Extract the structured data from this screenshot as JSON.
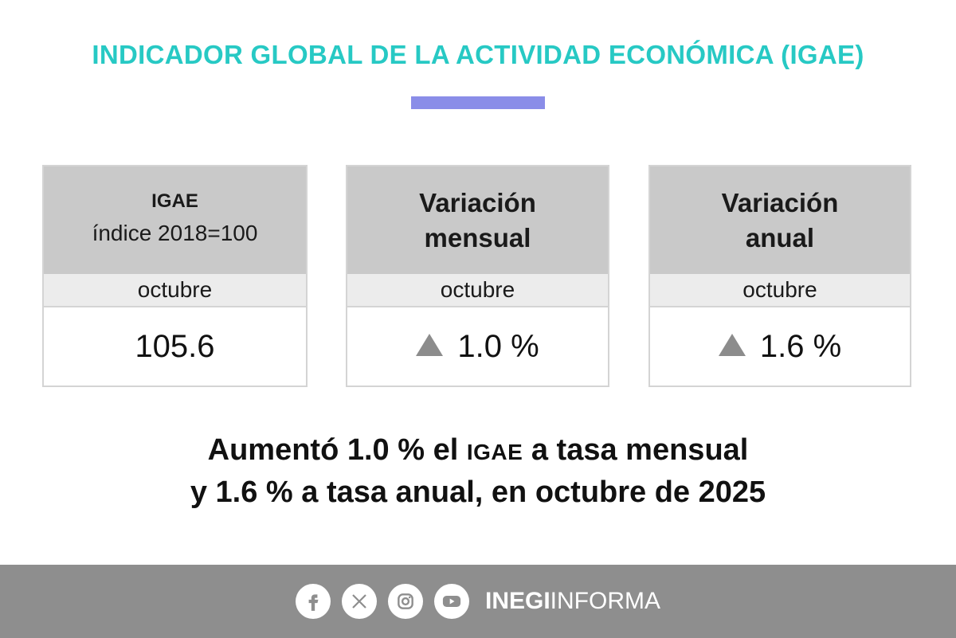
{
  "header": {
    "title": "INDICADOR GLOBAL DE LA ACTIVIDAD ECONÓMICA (IGAE)"
  },
  "colors": {
    "title": "#27c9c4",
    "accent_bar": "#8a8de8",
    "card_header": "#c9c9c9",
    "card_month": "#ececec",
    "arrow": "#8c8c8c",
    "footer": "#8e8e8e"
  },
  "cards": [
    {
      "title": "IGAE",
      "subtitle": "índice 2018=100",
      "month": "octubre",
      "value": "105.6"
    },
    {
      "title_line1": "Variación",
      "title_line2": "mensual",
      "month": "octubre",
      "indicator": "up-triangle-icon",
      "value": "1.0 %"
    },
    {
      "title_line1": "Variación",
      "title_line2": "anual",
      "month": "octubre",
      "indicator": "up-triangle-icon",
      "value": "1.6 %"
    }
  ],
  "summary": {
    "line1_a": "Aumentó 1.0 % el ",
    "line1_caps": "IGAE",
    "line1_b": " a tasa mensual",
    "line2": "y 1.6 % a tasa anual, en octubre de 2025"
  },
  "footer": {
    "social_icons": [
      "facebook-icon",
      "x-icon",
      "instagram-icon",
      "youtube-icon"
    ],
    "brand_bold": "INEGI",
    "brand_light": "INFORMA"
  }
}
